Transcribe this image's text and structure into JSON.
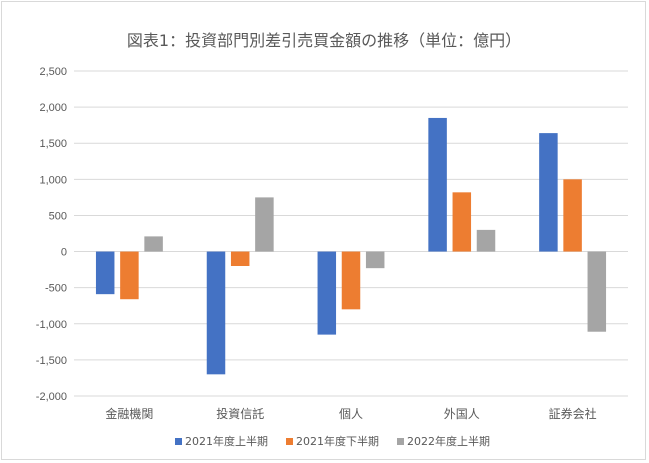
{
  "chart_data": {
    "type": "bar",
    "title": "図表1：投資部門別差引売買金額の推移（単位：億円）",
    "categories": [
      "金融機関",
      "投資信託",
      "個人",
      "外国人",
      "証券会社"
    ],
    "series": [
      {
        "name": "2021年度上半期",
        "color": "#4472C4",
        "values": [
          -590,
          -1700,
          -1150,
          1850,
          1640
        ]
      },
      {
        "name": "2021年度下半期",
        "color": "#ED7D31",
        "values": [
          -660,
          -200,
          -800,
          820,
          1000
        ]
      },
      {
        "name": "2022年度上半期",
        "color": "#A5A5A5",
        "values": [
          210,
          750,
          -230,
          300,
          -1110
        ]
      }
    ],
    "y_ticks": [
      "2,500",
      "2,000",
      "1,500",
      "1,000",
      "500",
      "0",
      "-500",
      "-1,000",
      "-1,500",
      "-2,000"
    ],
    "ylim": [
      -2000,
      2500
    ],
    "grid": true,
    "legend_position": "bottom"
  }
}
